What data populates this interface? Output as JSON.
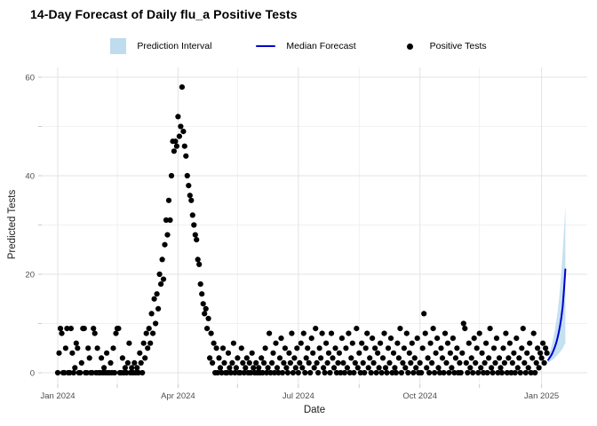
{
  "title": "14-Day Forecast of Daily flu_a Positive Tests",
  "legend": [
    {
      "label": "Prediction Interval",
      "marker": "ribbon-swatch",
      "color": "#BFDCEE"
    },
    {
      "label": "Median Forecast",
      "marker": "line-swatch",
      "color": "#0000CD"
    },
    {
      "label": "Positive Tests",
      "marker": "point-swatch",
      "color": "#000000"
    }
  ],
  "chart_data": {
    "type": "scatter",
    "title": "14-Day Forecast of Daily flu_a Positive Tests",
    "xlabel": "Date",
    "ylabel": "Predicted Tests",
    "grid": true,
    "legend_position": "top",
    "ylim": [
      -2,
      62
    ],
    "xlim_days": [
      -12,
      400
    ],
    "y_ticks": [
      0,
      20,
      40,
      60
    ],
    "y_minor_ticks": [
      10,
      30,
      50
    ],
    "x_ticks": [
      {
        "label": "Jan 2024",
        "day": 0
      },
      {
        "label": "Apr 2024",
        "day": 91
      },
      {
        "label": "Jul 2024",
        "day": 182
      },
      {
        "label": "Oct 2024",
        "day": 274
      },
      {
        "label": "Jan 2025",
        "day": 366
      }
    ],
    "x_minor_ticks_days": [
      45,
      136,
      228,
      319
    ],
    "series": [
      {
        "name": "Positive Tests",
        "type": "scatter",
        "color": "#000000",
        "start_day": 0,
        "daily_values": [
          0,
          4,
          9,
          8,
          0,
          0,
          5,
          9,
          0,
          0,
          9,
          4,
          0,
          1,
          6,
          5,
          0,
          0,
          2,
          9,
          9,
          0,
          0,
          5,
          3,
          0,
          0,
          9,
          8,
          0,
          5,
          0,
          0,
          3,
          0,
          1,
          0,
          4,
          0,
          0,
          2,
          0,
          5,
          0,
          8,
          9,
          9,
          0,
          0,
          3,
          0,
          1,
          0,
          2,
          6,
          0,
          1,
          0,
          2,
          0,
          1,
          0,
          4,
          2,
          0,
          6,
          3,
          8,
          5,
          9,
          6,
          12,
          8,
          15,
          10,
          16,
          13,
          20,
          18,
          23,
          19,
          26,
          31,
          28,
          35,
          31,
          40,
          47,
          45,
          47,
          46,
          52,
          48,
          50,
          58,
          49,
          46,
          44,
          40,
          38,
          36,
          35,
          32,
          30,
          28,
          27,
          23,
          22,
          18,
          16,
          14,
          12,
          13,
          9,
          11,
          3,
          8,
          2,
          6,
          0,
          5,
          0,
          3,
          1,
          0,
          5,
          2,
          0,
          0,
          4,
          1,
          0,
          2,
          6,
          0,
          1,
          3,
          0,
          0,
          5,
          2,
          0,
          1,
          3,
          0,
          2,
          0,
          4,
          1,
          0,
          2,
          0,
          1,
          0,
          3,
          0,
          2,
          5,
          0,
          1,
          8,
          0,
          2,
          4,
          0,
          6,
          1,
          0,
          3,
          7,
          0,
          2,
          5,
          1,
          0,
          4,
          2,
          8,
          0,
          3,
          1,
          5,
          0,
          2,
          6,
          1,
          8,
          0,
          3,
          5,
          2,
          0,
          7,
          4,
          1,
          9,
          2,
          0,
          5,
          3,
          8,
          1,
          0,
          6,
          2,
          4,
          0,
          8,
          3,
          1,
          5,
          0,
          2,
          4,
          0,
          7,
          2,
          0,
          5,
          1,
          8,
          0,
          3,
          6,
          0,
          2,
          9,
          1,
          4,
          0,
          6,
          2,
          0,
          5,
          8,
          1,
          3,
          0,
          7,
          2,
          5,
          0,
          4,
          1,
          6,
          0,
          3,
          8,
          1,
          0,
          5,
          2,
          7,
          0,
          4,
          1,
          0,
          6,
          3,
          9,
          0,
          2,
          5,
          1,
          8,
          0,
          4,
          2,
          6,
          0,
          3,
          1,
          7,
          0,
          2,
          0,
          5,
          12,
          8,
          1,
          3,
          0,
          6,
          2,
          9,
          0,
          4,
          7,
          1,
          0,
          5,
          3,
          0,
          8,
          2,
          6,
          0,
          4,
          1,
          7,
          0,
          3,
          5,
          0,
          2,
          0,
          4,
          10,
          9,
          2,
          0,
          6,
          1,
          3,
          0,
          7,
          2,
          5,
          0,
          8,
          1,
          4,
          0,
          2,
          6,
          0,
          3,
          9,
          1,
          0,
          5,
          2,
          7,
          0,
          3,
          1,
          0,
          5,
          2,
          8,
          0,
          3,
          6,
          0,
          2,
          4,
          0,
          7,
          1,
          3,
          0,
          5,
          9,
          2,
          0,
          4,
          1,
          6,
          0,
          3,
          8,
          0,
          2,
          5,
          1,
          4,
          3,
          6,
          2,
          5,
          4
        ]
      },
      {
        "name": "Median Forecast",
        "type": "line",
        "color": "#0000CD",
        "start_day": 371,
        "values": [
          2.6,
          3.0,
          3.4,
          3.9,
          4.5,
          5.2,
          6.0,
          7.0,
          8.2,
          9.6,
          11.3,
          13.5,
          17,
          21
        ]
      },
      {
        "name": "Prediction Interval",
        "type": "ribbon",
        "color": "#BFDDEF",
        "start_day": 371,
        "upper": [
          3.2,
          4.0,
          4.9,
          6.0,
          7.2,
          8.6,
          10.2,
          12.1,
          14.4,
          17.2,
          20.6,
          24.6,
          29,
          34
        ],
        "lower": [
          2.1,
          2.2,
          2.4,
          2.6,
          2.8,
          3.0,
          3.3,
          3.6,
          3.9,
          4.2,
          4.6,
          5.0,
          5.5,
          6
        ]
      }
    ]
  }
}
